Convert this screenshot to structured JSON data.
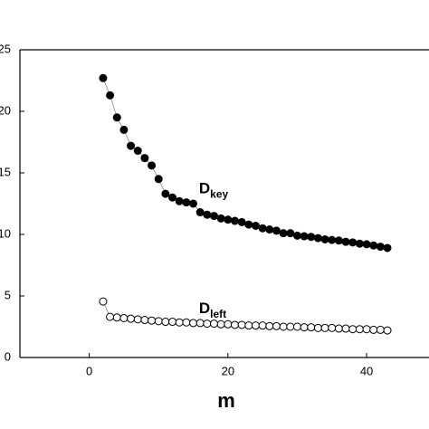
{
  "chart_data": {
    "type": "scatter",
    "x_label": "m",
    "x": [
      2,
      3,
      4,
      5,
      6,
      7,
      8,
      9,
      10,
      11,
      12,
      13,
      14,
      15,
      16,
      17,
      18,
      19,
      20,
      21,
      22,
      23,
      24,
      25,
      26,
      27,
      28,
      29,
      30,
      31,
      32,
      33,
      34,
      35,
      36,
      37,
      38,
      39,
      40,
      41,
      42,
      43
    ],
    "series": [
      {
        "name": "D",
        "subscript": "key",
        "color": "#000000",
        "fill": "#000000",
        "values": [
          22.7,
          21.3,
          19.5,
          18.5,
          17.2,
          16.8,
          16.2,
          15.6,
          14.5,
          13.3,
          13.0,
          12.7,
          12.6,
          12.5,
          11.8,
          11.6,
          11.5,
          11.3,
          11.2,
          11.1,
          11.0,
          10.8,
          10.7,
          10.5,
          10.4,
          10.3,
          10.1,
          10.1,
          9.9,
          9.85,
          9.8,
          9.7,
          9.6,
          9.55,
          9.5,
          9.4,
          9.35,
          9.25,
          9.2,
          9.1,
          9.0,
          8.9
        ]
      },
      {
        "name": "D",
        "subscript": "left",
        "color": "#000000",
        "fill": "#ffffff",
        "values": [
          4.55,
          3.3,
          3.25,
          3.2,
          3.15,
          3.1,
          3.05,
          3.0,
          2.95,
          2.9,
          2.9,
          2.85,
          2.85,
          2.8,
          2.8,
          2.75,
          2.75,
          2.7,
          2.7,
          2.65,
          2.65,
          2.6,
          2.6,
          2.6,
          2.55,
          2.55,
          2.5,
          2.5,
          2.5,
          2.45,
          2.45,
          2.4,
          2.4,
          2.4,
          2.35,
          2.35,
          2.3,
          2.3,
          2.3,
          2.25,
          2.25,
          2.2
        ]
      }
    ],
    "xlim": [
      -10,
      49
    ],
    "xticks": [
      0,
      20,
      40
    ],
    "ylim": [
      0,
      25
    ],
    "yticks": [
      0,
      5,
      10,
      15,
      20,
      25
    ]
  }
}
